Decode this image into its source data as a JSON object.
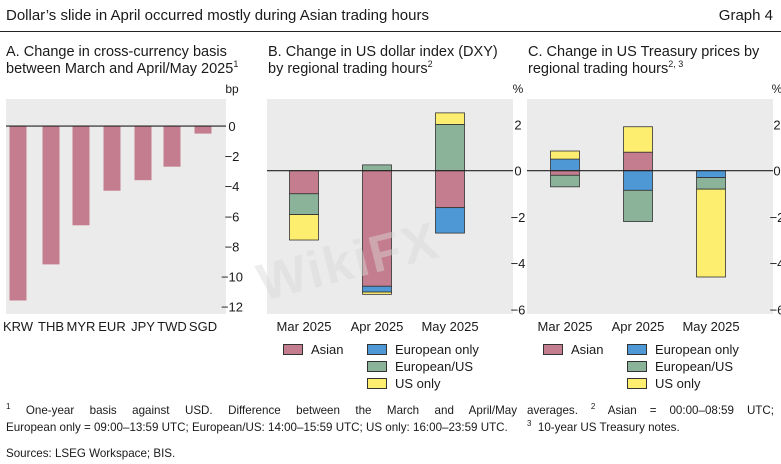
{
  "header": {
    "title": "Dollar’s slide in April occurred mostly during Asian trading hours",
    "graph_label": "Graph 4"
  },
  "watermark": "WikiFX",
  "panels": {
    "a": {
      "title_line1": "A. Change in cross-currency basis",
      "title_line2": "between March and April/May 2025",
      "sup": "1",
      "unit": "bp"
    },
    "b": {
      "title_line1": "B. Change in US dollar index (DXY)",
      "title_line2": "by regional trading hours",
      "sup": "2",
      "unit": "%"
    },
    "c": {
      "title_line1": "C. Change in US Treasury prices by",
      "title_line2": "regional trading hours",
      "sup": "2, 3",
      "unit": "%"
    }
  },
  "legend": {
    "asian": "Asian",
    "european_only": "European only",
    "european_us": "European/US",
    "us_only": "US only"
  },
  "colors": {
    "asian": "#c47d8e",
    "european_only": "#4e98d6",
    "european_us": "#8bb39a",
    "us_only": "#fdee6f",
    "bar_a": "#c47d8e",
    "panel_bg": "#ebebeb",
    "axis": "#222222"
  },
  "chart_data": [
    {
      "type": "bar",
      "title": "A. Change in cross-currency basis between March and April/May 2025",
      "ylabel": "bp",
      "categories": [
        "KRW",
        "THB",
        "MYR",
        "EUR",
        "JPY",
        "TWD",
        "SGD"
      ],
      "values": [
        -11.6,
        -9.2,
        -6.6,
        -4.3,
        -3.6,
        -2.7,
        -0.5
      ],
      "ylim": [
        -12.5,
        1.8
      ],
      "yticks": [
        0,
        -2,
        -4,
        -6,
        -8,
        -10,
        -12
      ]
    },
    {
      "type": "bar",
      "stacked": true,
      "title": "B. Change in US dollar index (DXY) by regional trading hours",
      "ylabel": "%",
      "categories": [
        "Mar 2025",
        "Apr 2025",
        "May 2025"
      ],
      "series": [
        {
          "name": "Asian",
          "key": "asian",
          "values": [
            -1.0,
            -5.0,
            -1.6
          ]
        },
        {
          "name": "European only",
          "key": "european_only",
          "values": [
            0.0,
            -0.25,
            -1.1
          ]
        },
        {
          "name": "European/US",
          "key": "european_us",
          "values": [
            -0.9,
            0.25,
            2.0
          ]
        },
        {
          "name": "US only",
          "key": "us_only",
          "values": [
            -1.1,
            -0.1,
            0.5
          ]
        }
      ],
      "ylim": [
        -6.2,
        3.1
      ],
      "yticks": [
        2,
        0,
        -2,
        -4,
        -6
      ]
    },
    {
      "type": "bar",
      "stacked": true,
      "title": "C. Change in US Treasury prices by regional trading hours",
      "ylabel": "%",
      "categories": [
        "Mar 2025",
        "Apr 2025",
        "May 2025"
      ],
      "series": [
        {
          "name": "Asian",
          "key": "asian",
          "values": [
            -0.2,
            0.8,
            0.0
          ]
        },
        {
          "name": "European only",
          "key": "european_only",
          "values": [
            0.5,
            -0.85,
            -0.3
          ]
        },
        {
          "name": "European/US",
          "key": "european_us",
          "values": [
            -0.5,
            -1.35,
            -0.5
          ]
        },
        {
          "name": "US only",
          "key": "us_only",
          "values": [
            0.35,
            1.1,
            -3.8
          ]
        }
      ],
      "ylim": [
        -6.2,
        3.1
      ],
      "yticks": [
        2,
        0,
        -2,
        -4,
        -6
      ]
    }
  ],
  "footnotes": {
    "n1": "One-year basis against USD. Difference between the March and April/May",
    "n2_start": "averages.",
    "n2": "Asian = 00:00–08:59 UTC;",
    "line2_left": "European only = 09:00–13:59 UTC; European/US: 14:00–15:59 UTC; US only: 16:00–23:59 UTC.",
    "n3": "10-year US Treasury notes.",
    "sources": "Sources: LSEG Workspace; BIS."
  }
}
